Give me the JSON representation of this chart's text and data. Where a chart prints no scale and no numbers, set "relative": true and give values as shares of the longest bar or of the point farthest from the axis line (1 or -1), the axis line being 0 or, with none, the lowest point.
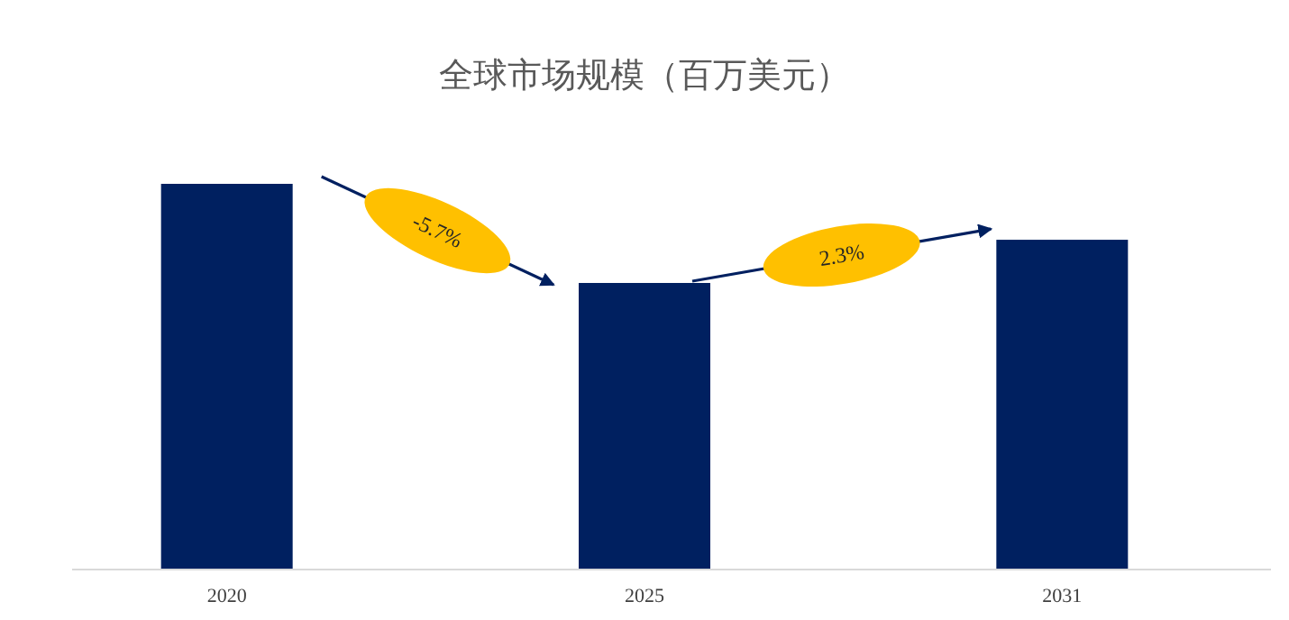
{
  "chart_data": {
    "type": "bar",
    "title": "全球市场规模（百万美元）",
    "categories": [
      "2020",
      "2025",
      "2031"
    ],
    "values": [
      1,
      0.743,
      0.855
    ],
    "color": "#002060",
    "relative": true,
    "annotations": [
      "-5.7%",
      "2.3%"
    ]
  }
}
